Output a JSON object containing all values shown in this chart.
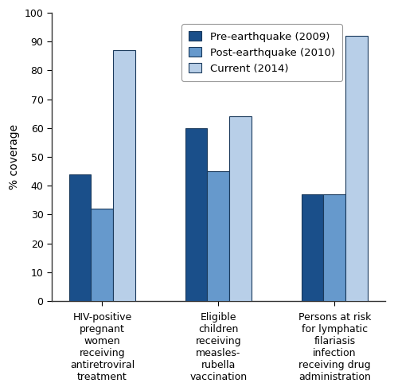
{
  "categories": [
    "HIV-positive\npregnant\nwomen\nreceiving\nantiretroviral\ntreatment",
    "Eligible\nchildren\nreceiving\nmeasles-\nrubella\nvaccination",
    "Persons at risk\nfor lymphatic\nfilariasis\ninfection\nreceiving drug\nadministration"
  ],
  "series": [
    {
      "label": "Pre-earthquake (2009)",
      "values": [
        44,
        60,
        37
      ],
      "color": "#1a4f8a"
    },
    {
      "label": "Post-earthquake (2010)",
      "values": [
        32,
        45,
        37
      ],
      "color": "#6699cc"
    },
    {
      "label": "Current (2014)",
      "values": [
        87,
        64,
        92
      ],
      "color": "#b8cfe8"
    }
  ],
  "ylabel": "% coverage",
  "ylim": [
    0,
    100
  ],
  "yticks": [
    0,
    10,
    20,
    30,
    40,
    50,
    60,
    70,
    80,
    90,
    100
  ],
  "bar_width": 0.22,
  "edge_color": "#1a3a5c",
  "background_color": "#ffffff",
  "legend_fontsize": 9.5,
  "ylabel_fontsize": 10,
  "tick_fontsize": 9,
  "xlabel_fontsize": 9
}
